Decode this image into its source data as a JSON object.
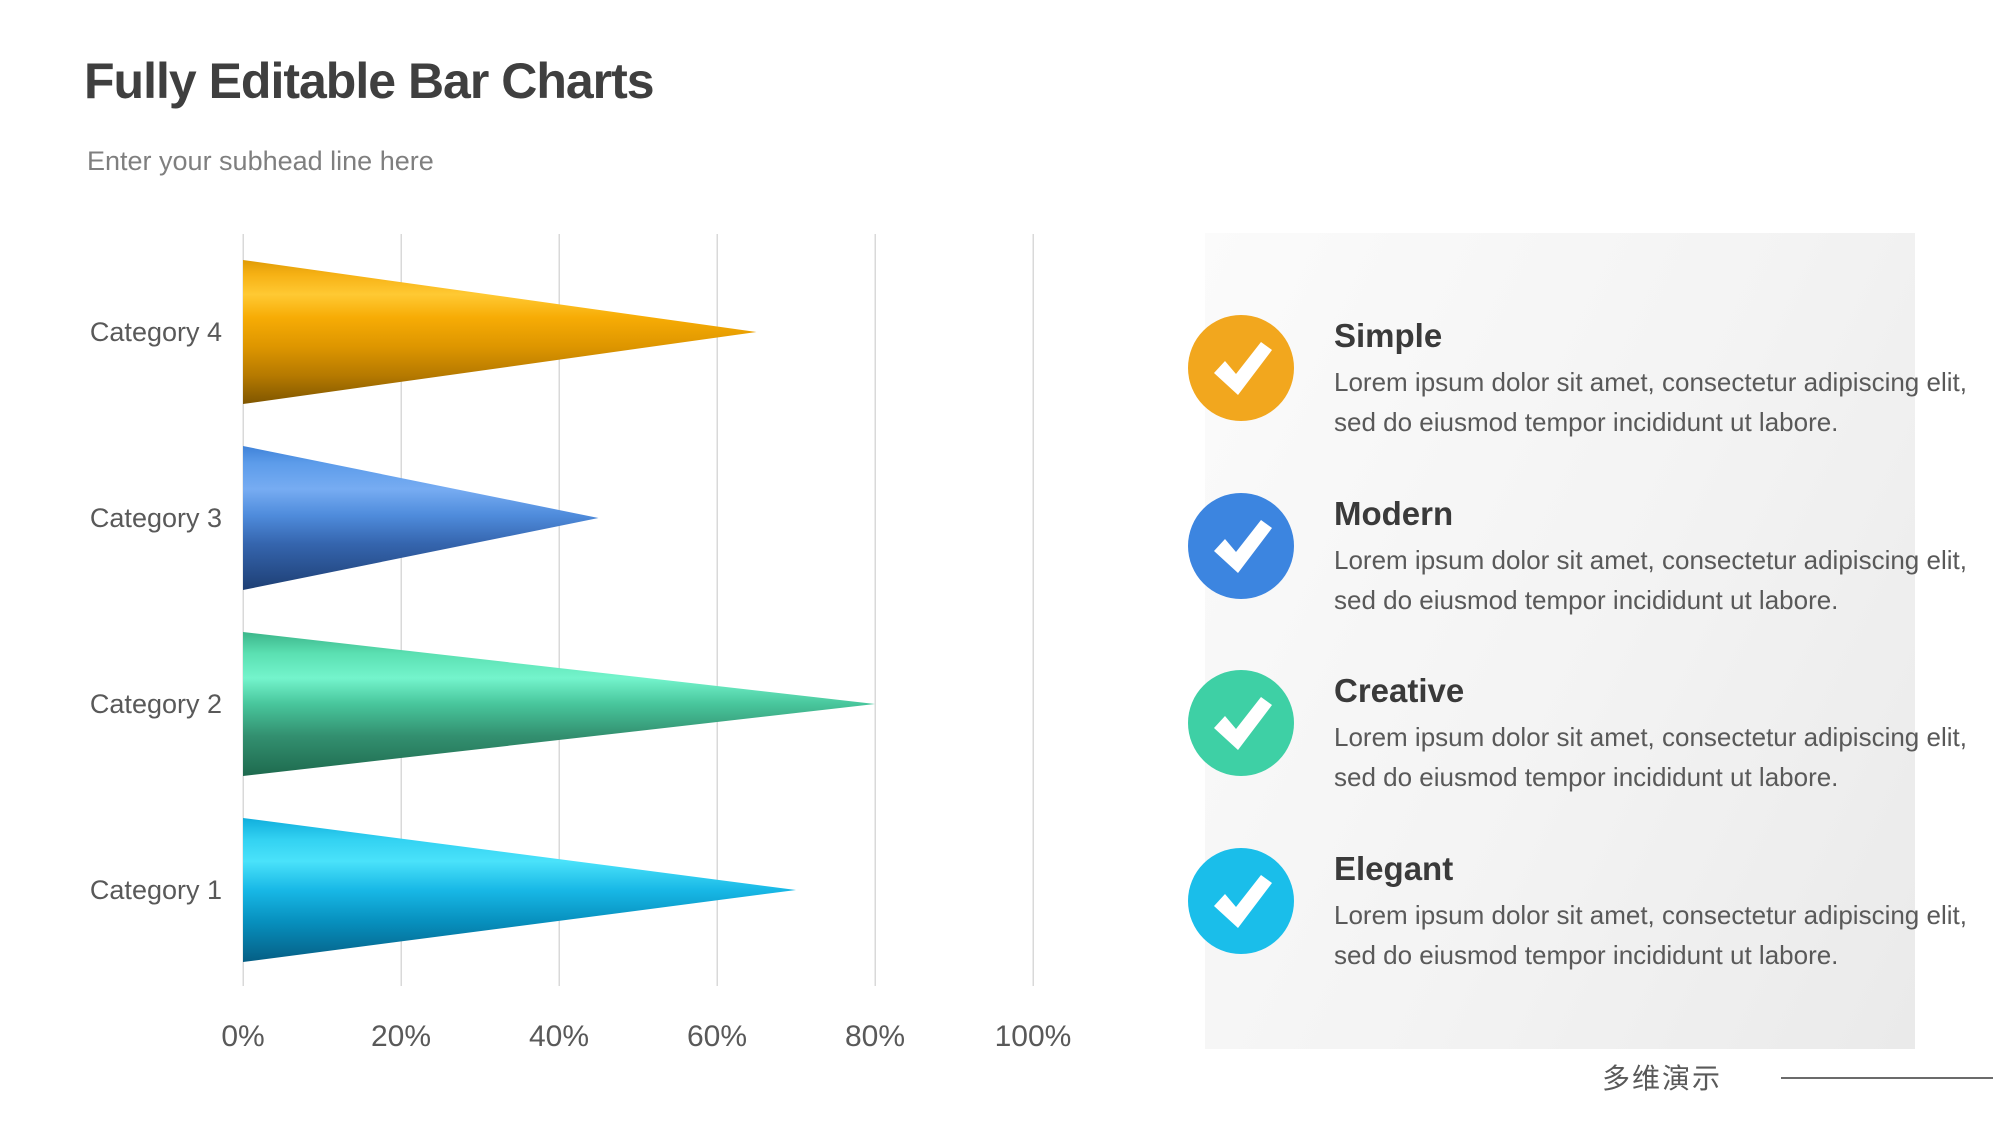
{
  "header": {
    "title": "Fully Editable Bar Charts",
    "subtitle": "Enter your subhead line here"
  },
  "chart_data": {
    "type": "bar",
    "orientation": "horizontal",
    "style": "3d-cone-bars",
    "title": "",
    "categories": [
      "Category 4",
      "Category 3",
      "Category 2",
      "Category 1"
    ],
    "values": [
      65,
      45,
      80,
      70
    ],
    "unit": "%",
    "xlim": [
      0,
      100
    ],
    "x_ticks": [
      0,
      20,
      40,
      60,
      80,
      100
    ],
    "x_tick_labels": [
      "0%",
      "20%",
      "40%",
      "60%",
      "80%",
      "100%"
    ],
    "grid": "vertical",
    "gridline_color": "#d9d9d9",
    "label_color": "#595959",
    "bar_gradients": [
      [
        [
          0,
          "#df9b07"
        ],
        [
          0.1,
          "#f6b114"
        ],
        [
          0.24,
          "#ffc933"
        ],
        [
          0.4,
          "#f7ac05"
        ],
        [
          0.6,
          "#de9600"
        ],
        [
          0.8,
          "#b67a00"
        ],
        [
          1,
          "#7f5600"
        ]
      ],
      [
        [
          0,
          "#3f82d8"
        ],
        [
          0.12,
          "#5d9cea"
        ],
        [
          0.3,
          "#77acf2"
        ],
        [
          0.48,
          "#4f8cdc"
        ],
        [
          0.68,
          "#3565ae"
        ],
        [
          1,
          "#1e3f74"
        ]
      ],
      [
        [
          0,
          "#3cb68a"
        ],
        [
          0.15,
          "#5be0b2"
        ],
        [
          0.32,
          "#74f4cc"
        ],
        [
          0.5,
          "#48c69c"
        ],
        [
          0.72,
          "#339070"
        ],
        [
          1,
          "#1e6a4e"
        ]
      ],
      [
        [
          0,
          "#10aedc"
        ],
        [
          0.15,
          "#33d2f2"
        ],
        [
          0.3,
          "#4ae2fa"
        ],
        [
          0.5,
          "#18b8e6"
        ],
        [
          0.72,
          "#0790be"
        ],
        [
          1,
          "#055e84"
        ]
      ]
    ]
  },
  "features": [
    {
      "title": "Simple",
      "color": "#f2a71e",
      "desc": "Lorem ipsum dolor sit amet, consectetur adipiscing elit, sed do eiusmod tempor incididunt ut labore."
    },
    {
      "title": "Modern",
      "color": "#3c85e0",
      "desc": "Lorem ipsum dolor sit amet, consectetur adipiscing elit, sed do eiusmod tempor incididunt ut labore."
    },
    {
      "title": "Creative",
      "color": "#3ed0a5",
      "desc": "Lorem ipsum dolor sit amet, consectetur adipiscing elit, sed do eiusmod tempor incididunt ut labore."
    },
    {
      "title": "Elegant",
      "color": "#1abeea",
      "desc": "Lorem ipsum dolor sit amet, consectetur adipiscing elit, sed do eiusmod tempor incididunt ut labore."
    }
  ],
  "footer": {
    "brand": "多维演示"
  }
}
